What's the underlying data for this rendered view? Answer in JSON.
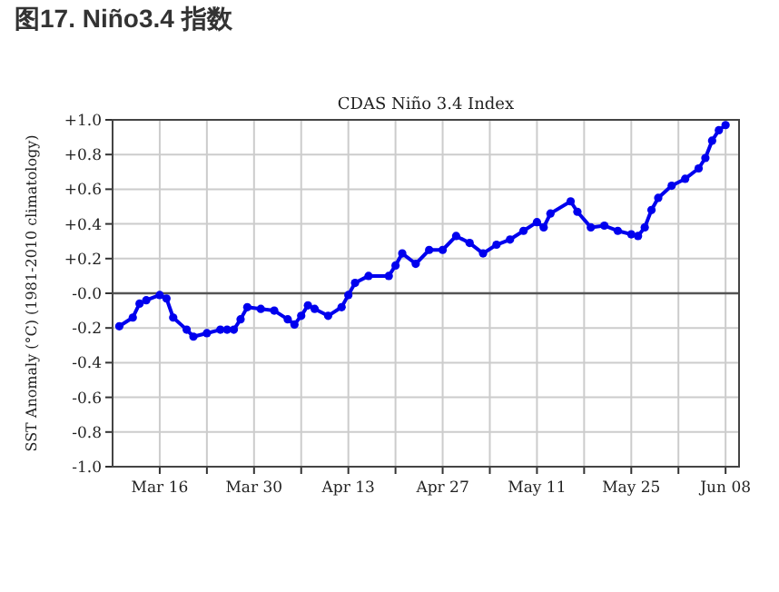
{
  "chart_data": {
    "type": "line",
    "title": "图17. Niño3.4 指数",
    "subtitle": "CDAS Niño 3.4 Index",
    "ylabel": "SST Anomaly (°C) (1981-2010 climatology)",
    "x": [
      "--03-10",
      "--03-12",
      "--03-13",
      "--03-14",
      "--03-16",
      "--03-17",
      "--03-18",
      "--03-20",
      "--03-21",
      "--03-23",
      "--03-25",
      "--03-26",
      "--03-27",
      "--03-28",
      "--03-29",
      "--03-31",
      "--04-02",
      "--04-04",
      "--04-05",
      "--04-06",
      "--04-07",
      "--04-08",
      "--04-10",
      "--04-12",
      "--04-13",
      "--04-14",
      "--04-16",
      "--04-19",
      "--04-20",
      "--04-21",
      "--04-23",
      "--04-25",
      "--04-27",
      "--04-29",
      "--05-01",
      "--05-03",
      "--05-05",
      "--05-07",
      "--05-09",
      "--05-11",
      "--05-12",
      "--05-13",
      "--05-16",
      "--05-17",
      "--05-19",
      "--05-21",
      "--05-23",
      "--05-25",
      "--05-26",
      "--05-27",
      "--05-28",
      "--05-29",
      "--05-31",
      "--06-02",
      "--06-04",
      "--06-05",
      "--06-06",
      "--06-07",
      "--06-08"
    ],
    "series": [
      {
        "color": "#0000ee",
        "values": [
          -0.19,
          -0.14,
          -0.06,
          -0.04,
          -0.01,
          -0.03,
          -0.14,
          -0.21,
          -0.25,
          -0.23,
          -0.21,
          -0.21,
          -0.21,
          -0.15,
          -0.08,
          -0.09,
          -0.1,
          -0.15,
          -0.18,
          -0.13,
          -0.07,
          -0.09,
          -0.13,
          -0.08,
          -0.01,
          0.06,
          0.1,
          0.1,
          0.16,
          0.23,
          0.17,
          0.25,
          0.25,
          0.33,
          0.29,
          0.23,
          0.28,
          0.31,
          0.36,
          0.41,
          0.38,
          0.46,
          0.53,
          0.47,
          0.38,
          0.39,
          0.36,
          0.34,
          0.33,
          0.38,
          0.48,
          0.55,
          0.62,
          0.66,
          0.72,
          0.78,
          0.88,
          0.94,
          0.97
        ]
      }
    ],
    "xlim": [
      "--03-09",
      "--06-10"
    ],
    "xticks": [
      {
        "value": "--03-16",
        "label": "Mar 16"
      },
      {
        "value": "--03-23",
        "label": null
      },
      {
        "value": "--03-30",
        "label": "Mar 30"
      },
      {
        "value": "--04-06",
        "label": null
      },
      {
        "value": "--04-13",
        "label": "Apr 13"
      },
      {
        "value": "--04-20",
        "label": null
      },
      {
        "value": "--04-27",
        "label": "Apr 27"
      },
      {
        "value": "--05-04",
        "label": null
      },
      {
        "value": "--05-11",
        "label": "May 11"
      },
      {
        "value": "--05-18",
        "label": null
      },
      {
        "value": "--05-25",
        "label": "May 25"
      },
      {
        "value": "--06-01",
        "label": null
      },
      {
        "value": "--06-08",
        "label": "Jun 08"
      }
    ],
    "ylim": [
      -1.0,
      1.0
    ],
    "yticks": [
      {
        "value": 1.0,
        "label": "+1.0"
      },
      {
        "value": 0.8,
        "label": "+0.8"
      },
      {
        "value": 0.6,
        "label": "+0.6"
      },
      {
        "value": 0.4,
        "label": "+0.4"
      },
      {
        "value": 0.2,
        "label": "+0.2"
      },
      {
        "value": 0,
        "label": "-0.0"
      },
      {
        "value": -0.2,
        "label": "-0.2"
      },
      {
        "value": -0.4,
        "label": "-0.4"
      },
      {
        "value": -0.6,
        "label": "-0.6"
      },
      {
        "value": -0.8,
        "label": "-0.8"
      },
      {
        "value": -1.0,
        "label": "-1.0"
      }
    ],
    "ref_lines": [
      {
        "axis": "y",
        "value": 0,
        "color": "#555555"
      }
    ],
    "grid": true,
    "marker": "circle",
    "line_style": "solid"
  }
}
